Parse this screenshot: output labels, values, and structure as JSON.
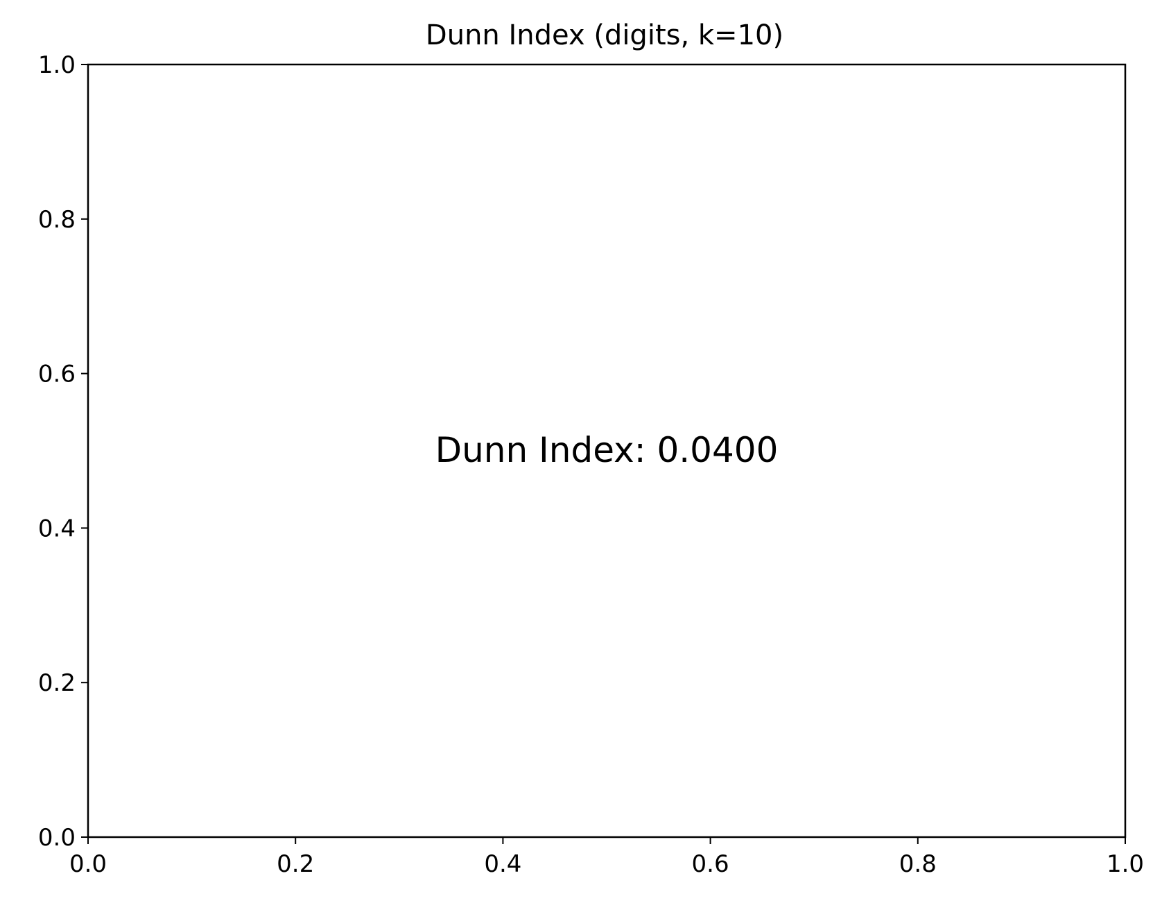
{
  "chart_data": {
    "type": "scatter",
    "title": "Dunn Index (digits, k=10)",
    "xlabel": "",
    "ylabel": "",
    "xlim": [
      0.0,
      1.0
    ],
    "ylim": [
      0.0,
      1.0
    ],
    "x_ticks": [
      "0.0",
      "0.2",
      "0.4",
      "0.6",
      "0.8",
      "1.0"
    ],
    "y_ticks": [
      "0.0",
      "0.2",
      "0.4",
      "0.6",
      "0.8",
      "1.0"
    ],
    "grid": false,
    "series": [],
    "annotations": [
      {
        "text": "Dunn Index: 0.0400",
        "x": 0.5,
        "y": 0.5
      }
    ],
    "colors": {
      "axis": "#000000",
      "background": "#ffffff"
    }
  }
}
